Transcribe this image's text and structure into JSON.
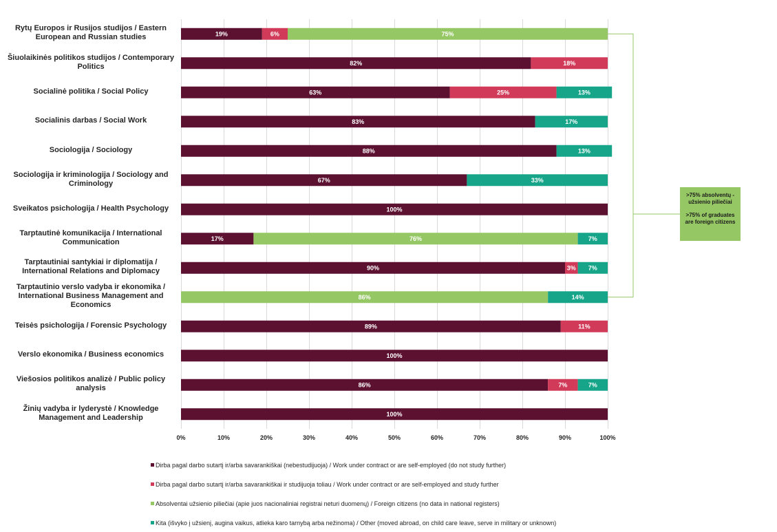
{
  "chart_data": {
    "type": "bar",
    "orientation": "horizontal",
    "stacked": "percent",
    "categories": [
      "Rytų Europos ir Rusijos studijos / Eastern European and Russian studies",
      "Šiuolaikinės politikos studijos / Contemporary Politics",
      "Socialinė politika / Social Policy",
      "Socialinis darbas / Social Work",
      "Sociologija / Sociology",
      "Sociologija ir kriminologija / Sociology and Criminology",
      "Sveikatos psichologija / Health Psychology",
      "Tarptautinė komunikacija / International Communication",
      "Tarptautiniai santykiai ir diplomatija / International Relations and Diplomacy",
      "Tarptautinio verslo vadyba ir ekonomika / International Business Management and Economics",
      "Teisės psichologija / Forensic Psychology",
      "Verslo ekonomika / Business economics",
      "Viešosios politikos analizė / Public policy analysis",
      "Žinių vadyba ir lyderystė / Knowledge Management and Leadership"
    ],
    "series": [
      {
        "name": "Dirba pagal darbo sutartį ir/arba savarankiškai (nebestudijuoja) / Work under contract or are self-employed (do not study further)",
        "color": "#5c1130",
        "values": [
          19,
          82,
          63,
          83,
          88,
          67,
          100,
          17,
          90,
          0,
          89,
          100,
          86,
          100
        ]
      },
      {
        "name": "Dirba pagal darbo sutartį ir/arba savarankiškai  ir studijuoja toliau / Work under contract or are self-employed and study further",
        "color": "#d13b59",
        "values": [
          6,
          18,
          25,
          0,
          0,
          0,
          0,
          0,
          3,
          0,
          11,
          0,
          7,
          0
        ]
      },
      {
        "name": "Absolventai užsienio piliečiai (apie juos nacionaliniai registrai neturi duomenų) / Foreign citizens (no data in national registers)",
        "color": "#96c765",
        "values": [
          75,
          0,
          0,
          0,
          0,
          0,
          0,
          76,
          0,
          86,
          0,
          0,
          0,
          0
        ]
      },
      {
        "name": "Kita (išvyko į užsienį, augina vaikus, atlieka karo tarnybą arba nežinoma) / Other (moved abroad, on child care leave, serve in military or unknown)",
        "color": "#17a58a",
        "values": [
          0,
          0,
          13,
          17,
          13,
          33,
          0,
          7,
          7,
          14,
          0,
          0,
          7,
          0
        ]
      }
    ],
    "xlim": [
      0,
      100
    ],
    "xticks": [
      "0%",
      "10%",
      "20%",
      "30%",
      "40%",
      "50%",
      "60%",
      "70%",
      "80%",
      "90%",
      "100%"
    ],
    "legend_position": "bottom",
    "title": "",
    "xlabel": "",
    "ylabel": ""
  },
  "callout": {
    "line_lt": ">75% absolventų - užsienio piliečiai",
    "line_en": ">75% of graduates are foreign citizens",
    "color": "#96c765",
    "bracket_color": "#96c765",
    "linked_categories": [
      0,
      7,
      9
    ]
  }
}
